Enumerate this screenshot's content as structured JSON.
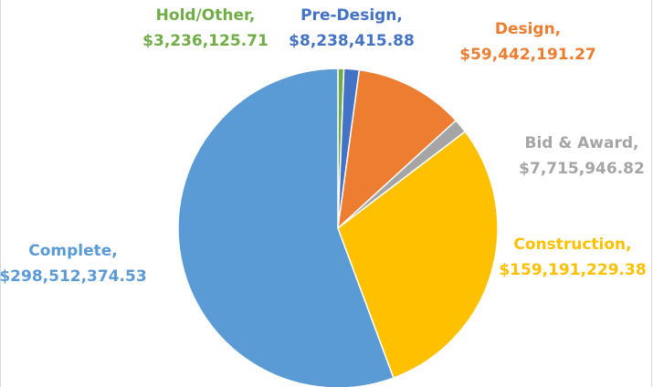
{
  "chart_data": {
    "type": "pie",
    "categories": [
      "Hold/Other,",
      "Pre-Design,",
      "Design,",
      "Bid & Award,",
      "Construction,",
      "Complete,"
    ],
    "values": [
      3236125.71,
      8238415.88,
      59442191.27,
      7715946.82,
      159191229.38,
      298512374.53
    ],
    "value_labels": [
      "$3,236,125.71",
      "$8,238,415.88",
      "$59,442,191.27",
      "$7,715,946.82",
      "$159,191,229.38",
      "$298,512,374.53"
    ],
    "colors": [
      "#70ad47",
      "#4472c4",
      "#ed7d31",
      "#a5a5a5",
      "#ffc000",
      "#5b9bd5"
    ]
  }
}
